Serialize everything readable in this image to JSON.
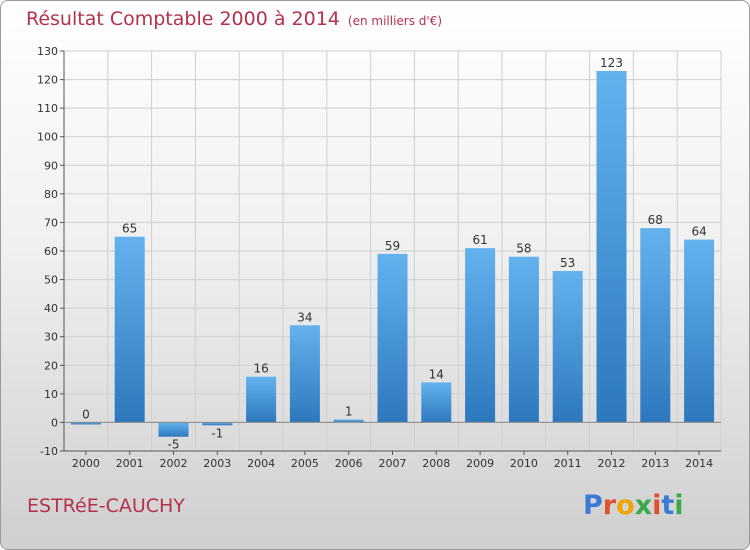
{
  "title": "Résultat Comptable 2000 à 2014",
  "unit_note": "(en milliers d'€)",
  "commune_name": "ESTRéE-CAUCHY",
  "logo": {
    "letters": [
      "P",
      "r",
      "o",
      "x",
      "i",
      "t",
      "i"
    ],
    "colors": [
      "#3a7bd5",
      "#e0502b",
      "#f0a400",
      "#3aa84a",
      "#e0502b",
      "#3a7bd5",
      "#3aa84a"
    ]
  },
  "chart_data": {
    "type": "bar",
    "categories": [
      "2000",
      "2001",
      "2002",
      "2003",
      "2004",
      "2005",
      "2006",
      "2007",
      "2008",
      "2009",
      "2010",
      "2011",
      "2012",
      "2013",
      "2014"
    ],
    "values": [
      0,
      65,
      -5,
      -1,
      16,
      34,
      1,
      59,
      14,
      61,
      58,
      53,
      123,
      68,
      64
    ],
    "data_labels": [
      "0",
      "65",
      "-5",
      "-1",
      "16",
      "34",
      "1",
      "59",
      "14",
      "61",
      "58",
      "53",
      "123",
      "68",
      "64"
    ],
    "ylim": [
      -10,
      130
    ],
    "yticks": [
      -10,
      0,
      10,
      20,
      30,
      40,
      50,
      60,
      70,
      80,
      90,
      100,
      110,
      120,
      130
    ],
    "ytick_labels": [
      "-10",
      "0",
      "10",
      "20",
      "30",
      "40",
      "50",
      "60",
      "70",
      "80",
      "90",
      "100",
      "110",
      "120",
      "130"
    ],
    "grid": true,
    "bar_color": "#3d95d8"
  }
}
